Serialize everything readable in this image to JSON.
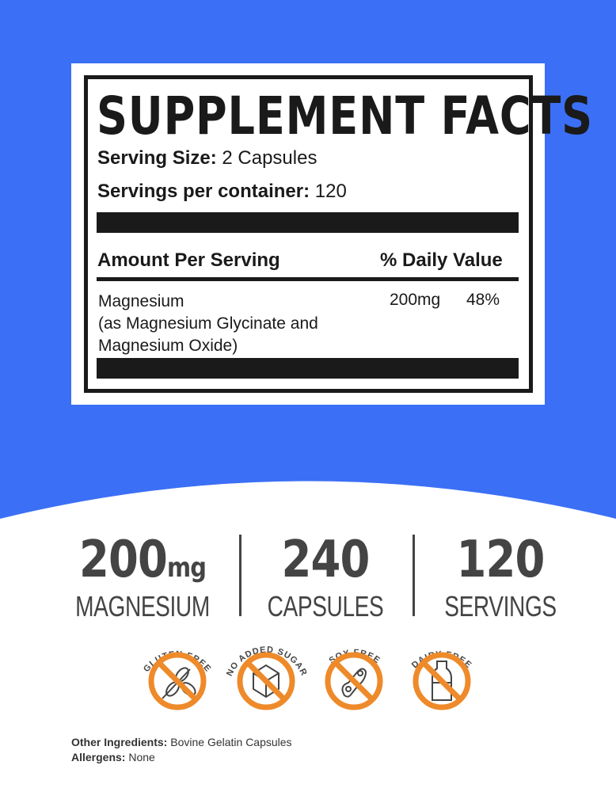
{
  "colors": {
    "background_blue": "#3b6ff5",
    "accent_orange": "#ee8a2a",
    "text_dark": "#1a1a1a",
    "stat_grey": "#444444"
  },
  "label": {
    "title": "SUPPLEMENT FACTS",
    "serving_size_label": "Serving Size:",
    "serving_size_value": "2 Capsules",
    "servings_label": "Servings per container:",
    "servings_value": "120",
    "amount_header": "Amount Per Serving",
    "dv_header": "% Daily Value",
    "nutrient": {
      "name": "Magnesium",
      "detail_1": "(as Magnesium Glycinate and",
      "detail_2": "Magnesium Oxide)",
      "amount": "200mg",
      "dv": "48%"
    }
  },
  "stats": [
    {
      "value": "200",
      "unit": "mg",
      "label": "MAGNESIUM"
    },
    {
      "value": "240",
      "label": "CAPSULES"
    },
    {
      "value": "120",
      "label": "SERVINGS"
    }
  ],
  "badges": [
    {
      "label": "GLUTEN FREE",
      "icon": "wheat-icon"
    },
    {
      "label": "NO ADDED SUGAR",
      "icon": "sugar-cube-icon"
    },
    {
      "label": "SOY FREE",
      "icon": "soybean-icon"
    },
    {
      "label": "DAIRY FREE",
      "icon": "milk-bottle-icon"
    }
  ],
  "footer": {
    "ingredients_label": "Other Ingredients:",
    "ingredients_value": "Bovine Gelatin Capsules",
    "allergens_label": "Allergens:",
    "allergens_value": "None"
  }
}
